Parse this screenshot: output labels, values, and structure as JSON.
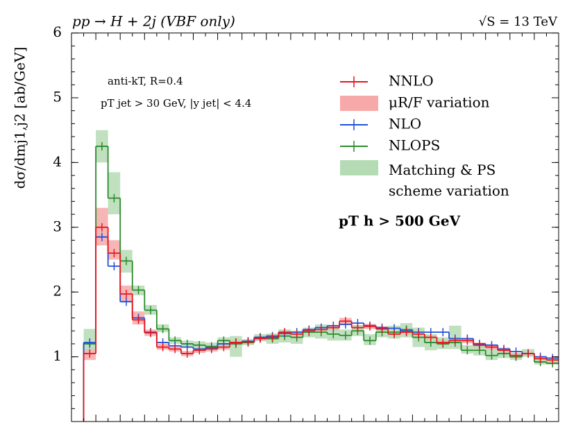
{
  "chart_data": {
    "type": "step",
    "title": "pp → H + 2j (VBF only)",
    "subtitle": "√S = 13 TeV",
    "y_label": "dσ/dmj1,j2 [ab/GeV]",
    "annotations": [
      "anti-kT, R=0.4",
      "pT jet > 30 GeV, |y jet| < 4.4",
      "pT h > 500 GeV"
    ],
    "categories": [
      null,
      null,
      null,
      null,
      null,
      null,
      null,
      null,
      null,
      null,
      null,
      null,
      null,
      null,
      null,
      null,
      null,
      null,
      null,
      null,
      null,
      null,
      null,
      null,
      null,
      null,
      null,
      null,
      null,
      null,
      null,
      null,
      null,
      null,
      null,
      null,
      null,
      null,
      null,
      null
    ],
    "ylim": [
      0,
      6
    ],
    "yticks": [
      1,
      2,
      3,
      4,
      5,
      6
    ],
    "series": [
      {
        "name": "NNLO",
        "color": "#e8141c",
        "values": [
          null,
          1.05,
          3.0,
          2.6,
          1.97,
          1.57,
          1.37,
          1.15,
          1.12,
          1.05,
          1.1,
          1.12,
          1.15,
          1.22,
          1.23,
          1.28,
          1.3,
          1.38,
          1.35,
          1.4,
          1.42,
          1.45,
          1.55,
          1.45,
          1.47,
          1.43,
          1.35,
          1.38,
          1.35,
          1.3,
          1.22,
          1.25,
          1.25,
          1.18,
          1.15,
          1.1,
          1.02,
          1.05,
          0.97,
          0.95
        ]
      },
      {
        "name": "NLO",
        "color": "#1f4fd8",
        "values": [
          null,
          1.22,
          2.85,
          2.4,
          1.85,
          1.6,
          1.38,
          1.22,
          1.17,
          1.15,
          1.12,
          1.14,
          1.2,
          1.22,
          1.24,
          1.3,
          1.32,
          1.36,
          1.38,
          1.42,
          1.45,
          1.48,
          1.5,
          1.52,
          1.48,
          1.45,
          1.44,
          1.4,
          1.38,
          1.38,
          1.38,
          1.28,
          1.28,
          1.2,
          1.18,
          1.12,
          1.08,
          1.05,
          1.0,
          0.98
        ]
      },
      {
        "name": "NLOPS",
        "color": "#2a8a2a",
        "values": [
          null,
          1.2,
          4.25,
          3.45,
          2.48,
          2.03,
          1.72,
          1.43,
          1.25,
          1.2,
          1.18,
          1.16,
          1.25,
          1.2,
          1.22,
          1.3,
          1.28,
          1.32,
          1.3,
          1.38,
          1.38,
          1.35,
          1.33,
          1.4,
          1.25,
          1.38,
          1.38,
          1.42,
          1.3,
          1.22,
          1.2,
          1.22,
          1.1,
          1.1,
          1.02,
          1.05,
          1.0,
          1.05,
          0.92,
          0.9
        ]
      }
    ],
    "bands": [
      {
        "name": "μR/F variation",
        "color": "#f7a8a8",
        "low": [
          null,
          0.95,
          2.72,
          2.5,
          1.85,
          1.5,
          1.32,
          1.11,
          1.08,
          1.01,
          1.06,
          1.08,
          1.11,
          1.18,
          1.19,
          1.24,
          1.26,
          1.34,
          1.31,
          1.36,
          1.38,
          1.41,
          1.5,
          1.41,
          1.43,
          1.39,
          1.31,
          1.34,
          1.31,
          1.26,
          1.18,
          1.21,
          1.21,
          1.14,
          1.11,
          1.06,
          0.98,
          1.01,
          0.93,
          0.91
        ],
        "high": [
          null,
          1.12,
          3.3,
          2.8,
          2.1,
          1.7,
          1.42,
          1.2,
          1.16,
          1.09,
          1.14,
          1.16,
          1.19,
          1.26,
          1.27,
          1.32,
          1.34,
          1.42,
          1.39,
          1.44,
          1.46,
          1.49,
          1.6,
          1.49,
          1.51,
          1.47,
          1.39,
          1.42,
          1.39,
          1.34,
          1.26,
          1.29,
          1.29,
          1.22,
          1.19,
          1.14,
          1.06,
          1.09,
          1.01,
          0.99
        ]
      },
      {
        "name": "Matching & PS scheme variation",
        "color": "#b5dbb5",
        "low": [
          null,
          1.1,
          4.0,
          3.2,
          2.3,
          1.95,
          1.65,
          1.38,
          1.2,
          1.15,
          1.12,
          1.1,
          1.15,
          1.0,
          1.18,
          1.25,
          1.2,
          1.22,
          1.2,
          1.3,
          1.28,
          1.25,
          1.25,
          1.32,
          1.18,
          1.3,
          1.28,
          1.3,
          1.15,
          1.1,
          1.12,
          1.12,
          1.05,
          1.02,
          0.95,
          0.98,
          0.95,
          1.0,
          0.88,
          0.88
        ],
        "high": [
          null,
          1.43,
          4.5,
          3.85,
          2.65,
          2.1,
          1.8,
          1.5,
          1.3,
          1.25,
          1.24,
          1.22,
          1.3,
          1.32,
          1.26,
          1.35,
          1.36,
          1.42,
          1.4,
          1.45,
          1.5,
          1.45,
          1.42,
          1.48,
          1.35,
          1.46,
          1.48,
          1.52,
          1.45,
          1.35,
          1.3,
          1.48,
          1.18,
          1.18,
          1.12,
          1.12,
          1.05,
          1.12,
          0.98,
          0.95
        ]
      }
    ]
  }
}
